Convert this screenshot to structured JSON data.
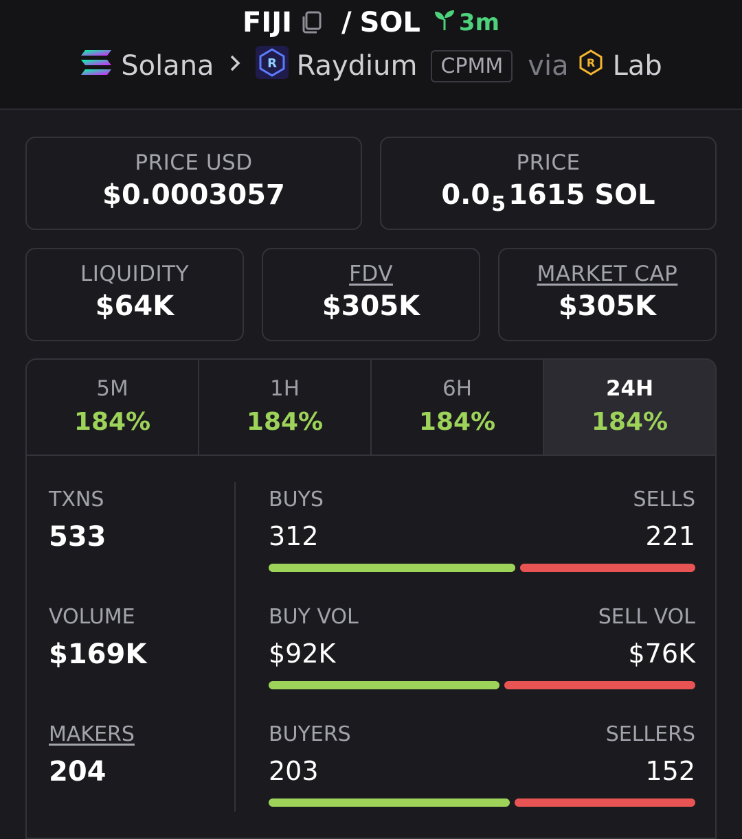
{
  "pair": {
    "base": "FIJI",
    "slash": "/",
    "quote": "SOL",
    "age": "3m"
  },
  "breadcrumb": {
    "chain": "Solana",
    "dex": "Raydium",
    "pool_type": "CPMM",
    "via": "via",
    "launchpad": "Lab"
  },
  "price_usd": {
    "label": "PRICE USD",
    "value": "$0.0003057"
  },
  "price_native": {
    "label": "PRICE",
    "prefix": "0.0",
    "zeros": "5",
    "suffix": "1615 SOL"
  },
  "liquidity": {
    "label": "LIQUIDITY",
    "value": "$64K"
  },
  "fdv": {
    "label": "FDV",
    "value": "$305K"
  },
  "market_cap": {
    "label": "MARKET CAP",
    "value": "$305K"
  },
  "tabs": [
    {
      "label": "5M",
      "value": "184%"
    },
    {
      "label": "1H",
      "value": "184%"
    },
    {
      "label": "6H",
      "value": "184%"
    },
    {
      "label": "24H",
      "value": "184%"
    }
  ],
  "active_tab": "24H",
  "txns": {
    "label": "TXNS",
    "value": "533",
    "buys_label": "BUYS",
    "buys": "312",
    "sells_label": "SELLS",
    "sells": "221",
    "buy_share": 0.585
  },
  "volume": {
    "label": "VOLUME",
    "value": "$169K",
    "buy_label": "BUY VOL",
    "buy": "$92K",
    "sell_label": "SELL VOL",
    "sell": "$76K",
    "buy_share": 0.548
  },
  "makers": {
    "label": "MAKERS",
    "value": "204",
    "buyers_label": "BUYERS",
    "buyers": "203",
    "sellers_label": "SELLERS",
    "sellers": "152",
    "buy_share": 0.572
  },
  "colors": {
    "positive": "#9ed35a",
    "buy_bar": "#9ed35a",
    "sell_bar": "#e85454",
    "age": "#4ed17b"
  }
}
